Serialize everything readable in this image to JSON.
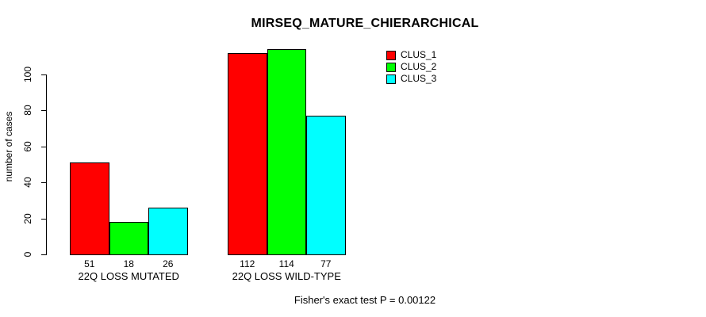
{
  "title": "MIRSEQ_MATURE_CHIERARCHICAL",
  "footnote": "Fisher's exact test P = 0.00122",
  "colors": {
    "background": "#ffffff",
    "axis": "#000000",
    "bar_border": "#000000",
    "text": "#000000"
  },
  "legend": {
    "position": "top-right",
    "items": [
      {
        "label": "CLUS_1",
        "color": "#ff0000"
      },
      {
        "label": "CLUS_2",
        "color": "#00ff00"
      },
      {
        "label": "CLUS_3",
        "color": "#00ffff"
      }
    ]
  },
  "chart_data": {
    "type": "bar",
    "title": "MIRSEQ_MATURE_CHIERARCHICAL",
    "xlabel": "",
    "ylabel": "number of cases",
    "categories": [
      "22Q LOSS MUTATED",
      "22Q LOSS WILD-TYPE"
    ],
    "series": [
      {
        "name": "CLUS_1",
        "color": "#ff0000",
        "values": [
          51,
          112
        ]
      },
      {
        "name": "CLUS_2",
        "color": "#00ff00",
        "values": [
          18,
          114
        ]
      },
      {
        "name": "CLUS_3",
        "color": "#00ffff",
        "values": [
          26,
          77
        ]
      }
    ],
    "bar_value_labels": [
      [
        "51",
        "18",
        "26"
      ],
      [
        "112",
        "114",
        "77"
      ]
    ],
    "yticks": [
      0,
      20,
      40,
      60,
      80,
      100
    ],
    "ylim": [
      0,
      115
    ],
    "grid": false,
    "legend_position": "top-right",
    "annotation": "Fisher's exact test P = 0.00122"
  }
}
